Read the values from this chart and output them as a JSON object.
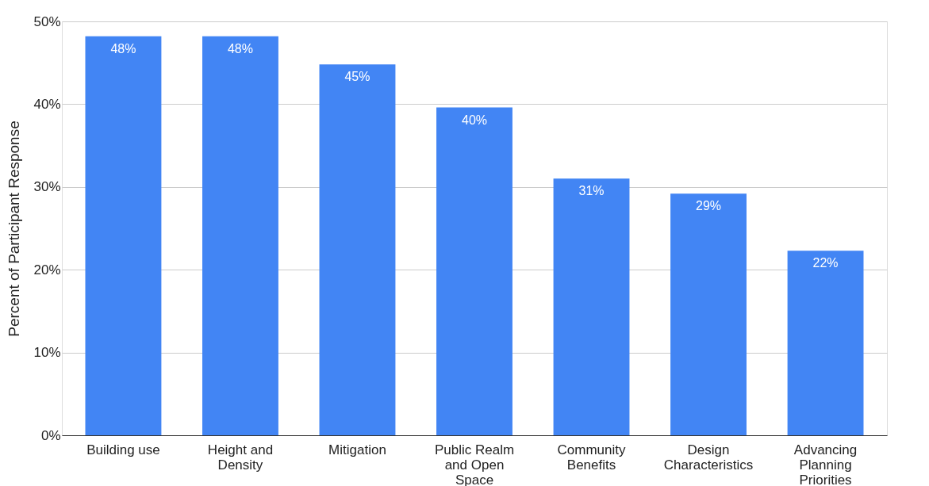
{
  "chart_data": {
    "type": "bar",
    "ylabel": "Percent of Participant Response",
    "categories": [
      "Building use",
      "Height and Density",
      "Mitigation",
      "Public Realm and Open Space",
      "Community Benefits",
      "Design Characteristics",
      "Advancing Planning Priorities"
    ],
    "values": [
      48.2,
      48.2,
      44.8,
      39.6,
      31.0,
      29.2,
      22.3
    ],
    "value_labels": [
      "48%",
      "48%",
      "45%",
      "40%",
      "31%",
      "29%",
      "22%"
    ],
    "color": "#4285f4",
    "ylim": [
      0,
      50
    ],
    "yticks": [
      {
        "value": 0,
        "label": "0%"
      },
      {
        "value": 10,
        "label": "10%"
      },
      {
        "value": 20,
        "label": "20%"
      },
      {
        "value": 30,
        "label": "30%"
      },
      {
        "value": 40,
        "label": "40%"
      },
      {
        "value": 50,
        "label": "50%"
      }
    ],
    "grid": "y"
  }
}
